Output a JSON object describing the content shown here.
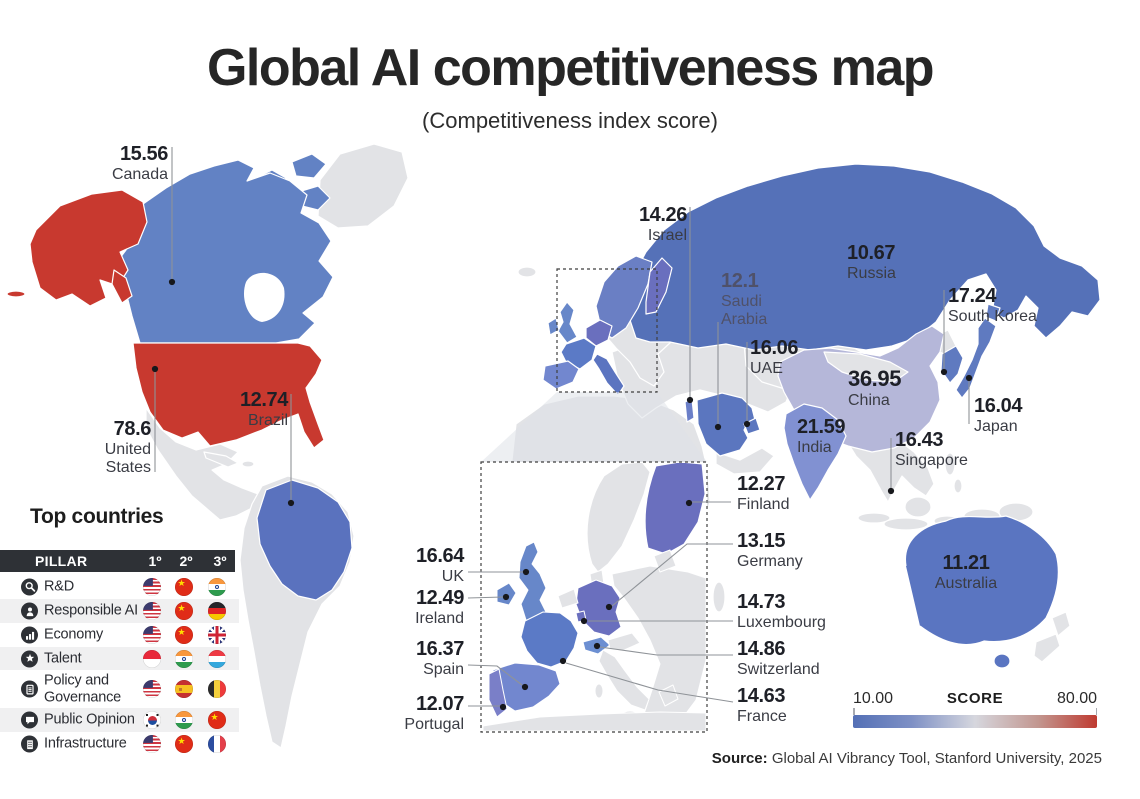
{
  "title": "Global AI competitiveness map",
  "subtitle": "(Competitiveness index score)",
  "map": {
    "labels": [
      {
        "id": "canada",
        "value": "15.56",
        "name": "Canada"
      },
      {
        "id": "united-states",
        "value": "78.6",
        "name": "United States"
      },
      {
        "id": "brazil",
        "value": "12.74",
        "name": "Brazil"
      },
      {
        "id": "israel",
        "value": "14.26",
        "name": "Israel"
      },
      {
        "id": "russia",
        "value": "10.67",
        "name": "Russia"
      },
      {
        "id": "saudi-arabia",
        "value": "12.1",
        "name": "Saudi Arabia"
      },
      {
        "id": "uae",
        "value": "16.06",
        "name": "UAE"
      },
      {
        "id": "china",
        "value": "36.95",
        "name": "China"
      },
      {
        "id": "south-korea",
        "value": "17.24",
        "name": "South Korea"
      },
      {
        "id": "japan",
        "value": "16.04",
        "name": "Japan"
      },
      {
        "id": "india",
        "value": "21.59",
        "name": "India"
      },
      {
        "id": "singapore",
        "value": "16.43",
        "name": "Singapore"
      },
      {
        "id": "finland",
        "value": "12.27",
        "name": "Finland"
      },
      {
        "id": "germany",
        "value": "13.15",
        "name": "Germany"
      },
      {
        "id": "luxembourg",
        "value": "14.73",
        "name": "Luxembourg"
      },
      {
        "id": "switzerland",
        "value": "14.86",
        "name": "Switzerland"
      },
      {
        "id": "france",
        "value": "14.63",
        "name": "France"
      },
      {
        "id": "uk",
        "value": "16.64",
        "name": "UK"
      },
      {
        "id": "ireland",
        "value": "12.49",
        "name": "Ireland"
      },
      {
        "id": "spain",
        "value": "16.37",
        "name": "Spain"
      },
      {
        "id": "portugal",
        "value": "12.07",
        "name": "Portugal"
      },
      {
        "id": "australia",
        "value": "11.21",
        "name": "Australia"
      }
    ]
  },
  "top_countries": {
    "heading": "Top countries",
    "columns": [
      "PILLAR",
      "1º",
      "2º",
      "3º"
    ],
    "rows": [
      {
        "pillar": "R&D",
        "icon": "rd-icon",
        "flags": [
          "us",
          "cn",
          "in"
        ]
      },
      {
        "pillar": "Responsible AI",
        "icon": "responsible-ai-icon",
        "flags": [
          "us",
          "cn",
          "de"
        ]
      },
      {
        "pillar": "Economy",
        "icon": "economy-icon",
        "flags": [
          "us",
          "cn",
          "gb"
        ]
      },
      {
        "pillar": "Talent",
        "icon": "talent-icon",
        "flags": [
          "sg",
          "in",
          "lu"
        ]
      },
      {
        "pillar": "Policy and Governance",
        "icon": "policy-governance-icon",
        "flags": [
          "us",
          "es",
          "be"
        ]
      },
      {
        "pillar": "Public Opinion",
        "icon": "public-opinion-icon",
        "flags": [
          "kr",
          "in",
          "cn"
        ]
      },
      {
        "pillar": "Infrastructure",
        "icon": "infrastructure-icon",
        "flags": [
          "us",
          "cn",
          "fr"
        ]
      }
    ]
  },
  "legend": {
    "min": "10.00",
    "label": "SCORE",
    "max": "80.00"
  },
  "source": {
    "prefix": "Source:",
    "text": "Global AI Vibrancy Tool, Stanford University, 2025"
  },
  "colors": {
    "title": "#262626",
    "header_bar": "#2e3136",
    "stripe": "#f0f0f1",
    "callout_line": "#8f9398",
    "dot": "#17181c",
    "score_low": "#5470b6",
    "score_mid": "#d6d7de",
    "score_high": "#bf3a30",
    "land_gray": "#e2e3e6",
    "canada": "#6282c4",
    "united_states": "#c8392f",
    "brazil": "#5a72be",
    "russia": "#5571b8",
    "china": "#b5b7d9",
    "india": "#8191d2",
    "saudi_arabia": "#5b76bf",
    "uae": "#5b76bf",
    "israel": "#6b7fc8",
    "south_korea": "#5f7ac0",
    "japan": "#5f7ac0",
    "australia": "#5a75c1",
    "scandinavia": "#6a7fc4",
    "finland": "#6a6fbe",
    "germany": "#6a6fbe",
    "uk": "#6787c9",
    "ireland": "#6787c9",
    "france": "#5b7ac6",
    "switzerland": "#6c8fd2",
    "luxembourg": "#6a6fbe",
    "spain": "#7287cf",
    "portugal": "#7a7fc8",
    "italy": "#5b74c0"
  }
}
